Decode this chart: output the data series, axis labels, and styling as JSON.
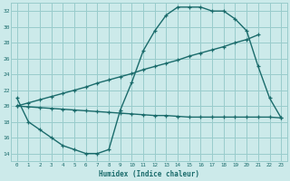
{
  "xlabel": "Humidex (Indice chaleur)",
  "bg_color": "#cceaea",
  "grid_color": "#99cccc",
  "line_color": "#1a6b6b",
  "xlim": [
    -0.5,
    23.5
  ],
  "ylim": [
    13,
    33
  ],
  "xticks": [
    0,
    1,
    2,
    3,
    4,
    5,
    6,
    7,
    8,
    9,
    10,
    11,
    12,
    13,
    14,
    15,
    16,
    17,
    18,
    19,
    20,
    21,
    22,
    23
  ],
  "yticks": [
    14,
    16,
    18,
    20,
    22,
    24,
    26,
    28,
    30,
    32
  ],
  "curve1_x": [
    0,
    1,
    2,
    3,
    4,
    5,
    6,
    7,
    8,
    9,
    10,
    11,
    12,
    13,
    14,
    15,
    16,
    17,
    18,
    19,
    20,
    21,
    22,
    23
  ],
  "curve1_y": [
    21,
    18,
    17,
    16,
    15,
    14.5,
    14,
    14,
    14.5,
    19.5,
    23,
    27,
    29.5,
    31.5,
    32.5,
    32.5,
    32.5,
    32,
    32,
    31,
    29.5,
    25,
    21,
    18.5
  ],
  "curve2_x": [
    0,
    1,
    2,
    3,
    4,
    5,
    6,
    7,
    8,
    9,
    10,
    11,
    12,
    13,
    14,
    15,
    16,
    17,
    18,
    19,
    20,
    21
  ],
  "curve2_y": [
    20,
    20.4,
    20.8,
    21.2,
    21.6,
    22.0,
    22.4,
    22.9,
    23.3,
    23.7,
    24.1,
    24.6,
    25.0,
    25.4,
    25.8,
    26.3,
    26.7,
    27.1,
    27.5,
    28.0,
    28.4,
    29.0
  ],
  "curve3_x": [
    0,
    1,
    2,
    3,
    4,
    5,
    6,
    7,
    8,
    9,
    10,
    11,
    12,
    13,
    14,
    15,
    16,
    17,
    18,
    19,
    20,
    21,
    22,
    23
  ],
  "curve3_y": [
    20,
    19.9,
    19.8,
    19.7,
    19.6,
    19.5,
    19.4,
    19.3,
    19.2,
    19.1,
    19.0,
    18.9,
    18.8,
    18.8,
    18.7,
    18.6,
    18.6,
    18.6,
    18.6,
    18.6,
    18.6,
    18.6,
    18.6,
    18.5
  ]
}
